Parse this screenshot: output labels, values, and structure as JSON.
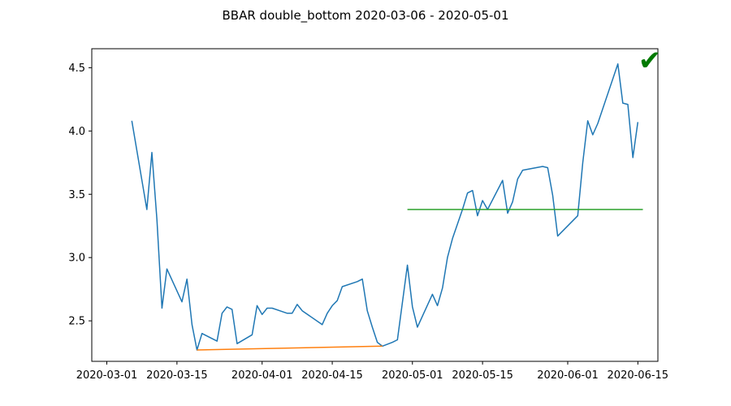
{
  "chart_data": {
    "type": "line",
    "title": "BBAR double_bottom 2020-03-06 - 2020-05-01",
    "xlabel": "",
    "ylabel": "",
    "xlim": [
      "2020-02-27",
      "2020-06-19"
    ],
    "ylim": [
      2.18,
      4.65
    ],
    "x_ticks": [
      "2020-03-01",
      "2020-03-15",
      "2020-04-01",
      "2020-04-15",
      "2020-05-01",
      "2020-05-15",
      "2020-06-01",
      "2020-06-15"
    ],
    "y_ticks": [
      2.5,
      3.0,
      3.5,
      4.0,
      4.5
    ],
    "y_tick_labels": [
      "2.5",
      "3.0",
      "3.5",
      "4.0",
      "4.5"
    ],
    "grid": false,
    "legend": "none",
    "series": [
      {
        "color": "#1f77b4",
        "points": [
          [
            "2020-03-06",
            4.08
          ],
          [
            "2020-03-09",
            3.38
          ],
          [
            "2020-03-10",
            3.83
          ],
          [
            "2020-03-11",
            3.3
          ],
          [
            "2020-03-12",
            2.6
          ],
          [
            "2020-03-13",
            2.91
          ],
          [
            "2020-03-16",
            2.65
          ],
          [
            "2020-03-17",
            2.83
          ],
          [
            "2020-03-18",
            2.47
          ],
          [
            "2020-03-19",
            2.27
          ],
          [
            "2020-03-20",
            2.4
          ],
          [
            "2020-03-23",
            2.34
          ],
          [
            "2020-03-24",
            2.56
          ],
          [
            "2020-03-25",
            2.61
          ],
          [
            "2020-03-26",
            2.59
          ],
          [
            "2020-03-27",
            2.32
          ],
          [
            "2020-03-30",
            2.39
          ],
          [
            "2020-03-31",
            2.62
          ],
          [
            "2020-04-01",
            2.55
          ],
          [
            "2020-04-02",
            2.6
          ],
          [
            "2020-04-03",
            2.6
          ],
          [
            "2020-04-06",
            2.56
          ],
          [
            "2020-04-07",
            2.56
          ],
          [
            "2020-04-08",
            2.63
          ],
          [
            "2020-04-09",
            2.58
          ],
          [
            "2020-04-13",
            2.47
          ],
          [
            "2020-04-14",
            2.56
          ],
          [
            "2020-04-15",
            2.62
          ],
          [
            "2020-04-16",
            2.66
          ],
          [
            "2020-04-17",
            2.77
          ],
          [
            "2020-04-20",
            2.81
          ],
          [
            "2020-04-21",
            2.83
          ],
          [
            "2020-04-22",
            2.58
          ],
          [
            "2020-04-23",
            2.45
          ],
          [
            "2020-04-24",
            2.33
          ],
          [
            "2020-04-25",
            2.3
          ],
          [
            "2020-04-27",
            2.33
          ],
          [
            "2020-04-28",
            2.35
          ],
          [
            "2020-04-30",
            2.94
          ],
          [
            "2020-05-01",
            2.61
          ],
          [
            "2020-05-02",
            2.45
          ],
          [
            "2020-05-05",
            2.71
          ],
          [
            "2020-05-06",
            2.62
          ],
          [
            "2020-05-07",
            2.76
          ],
          [
            "2020-05-08",
            3.0
          ],
          [
            "2020-05-09",
            3.15
          ],
          [
            "2020-05-11",
            3.38
          ],
          [
            "2020-05-12",
            3.51
          ],
          [
            "2020-05-13",
            3.53
          ],
          [
            "2020-05-14",
            3.33
          ],
          [
            "2020-05-15",
            3.45
          ],
          [
            "2020-05-16",
            3.38
          ],
          [
            "2020-05-19",
            3.61
          ],
          [
            "2020-05-20",
            3.35
          ],
          [
            "2020-05-21",
            3.44
          ],
          [
            "2020-05-22",
            3.62
          ],
          [
            "2020-05-23",
            3.69
          ],
          [
            "2020-05-27",
            3.72
          ],
          [
            "2020-05-28",
            3.71
          ],
          [
            "2020-05-29",
            3.49
          ],
          [
            "2020-05-30",
            3.17
          ],
          [
            "2020-06-03",
            3.33
          ],
          [
            "2020-06-04",
            3.75
          ],
          [
            "2020-06-05",
            4.08
          ],
          [
            "2020-06-06",
            3.97
          ],
          [
            "2020-06-07",
            4.06
          ],
          [
            "2020-06-11",
            4.53
          ],
          [
            "2020-06-12",
            4.22
          ],
          [
            "2020-06-13",
            4.21
          ],
          [
            "2020-06-14",
            3.79
          ],
          [
            "2020-06-15",
            4.07
          ]
        ]
      },
      {
        "color": "#ff7f0e",
        "points": [
          [
            "2020-03-19",
            2.27
          ],
          [
            "2020-04-25",
            2.3
          ]
        ]
      },
      {
        "color": "#2ca02c",
        "points": [
          [
            "2020-04-30",
            3.38
          ],
          [
            "2020-06-16",
            3.38
          ]
        ]
      }
    ],
    "marker": {
      "symbol": "✔",
      "color": "#007a00",
      "name": "check-mark-icon"
    }
  }
}
